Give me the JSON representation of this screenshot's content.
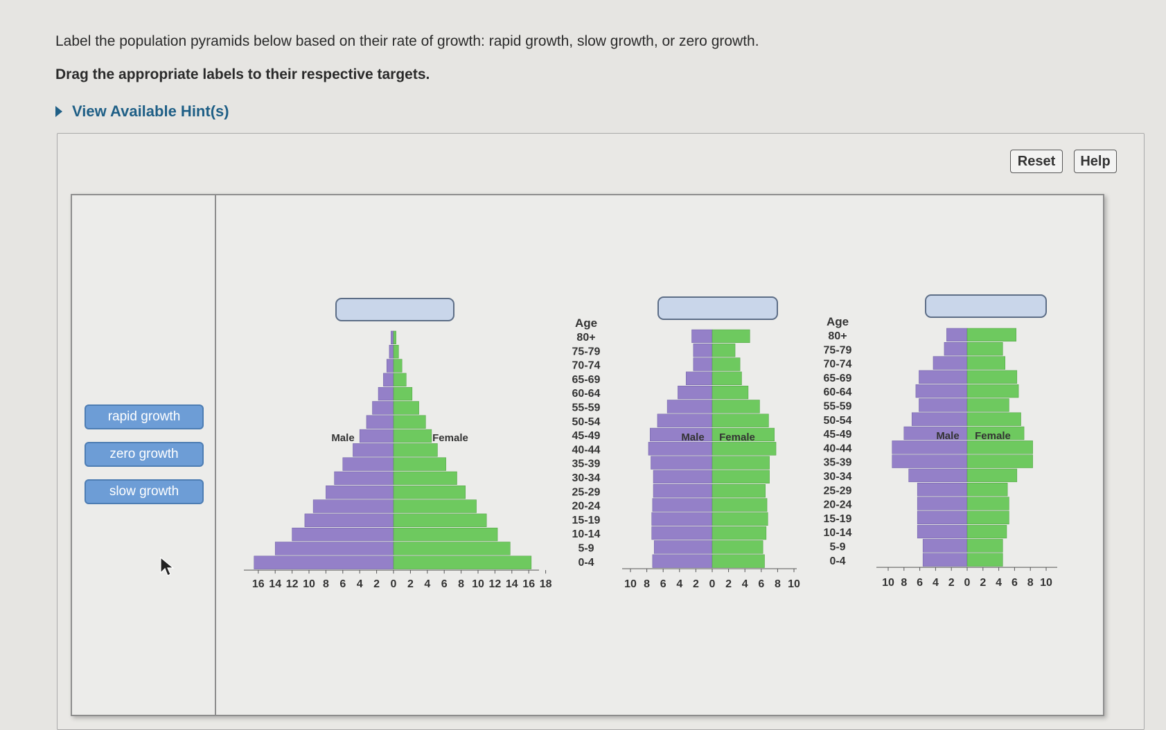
{
  "instruction": "Label the population pyramids below based on their rate of growth: rapid growth, slow growth, or zero growth.",
  "drag_instruction": "Drag the appropriate labels to their respective targets.",
  "hint_toggle": "View Available Hint(s)",
  "buttons": {
    "reset": "Reset",
    "help": "Help"
  },
  "labels": [
    "rapid growth",
    "zero growth",
    "slow growth"
  ],
  "colors": {
    "male": "#9480c8",
    "female": "#6ec95f",
    "label_bg": "#6d9dd6",
    "target_bg": "#c9d6ea"
  },
  "chart_data": [
    {
      "type": "bar",
      "orientation": "population-pyramid",
      "male_label": "Male",
      "female_label": "Female",
      "age_groups": [
        "80+",
        "75-79",
        "70-74",
        "65-69",
        "60-64",
        "55-59",
        "50-54",
        "45-49",
        "40-44",
        "35-39",
        "30-34",
        "25-29",
        "20-24",
        "15-19",
        "10-14",
        "5-9",
        "0-4"
      ],
      "male": [
        0.3,
        0.5,
        0.8,
        1.2,
        1.8,
        2.5,
        3.2,
        4,
        4.8,
        6,
        7,
        8,
        9.5,
        10.5,
        12,
        14,
        16.5
      ],
      "female": [
        0.3,
        0.6,
        1,
        1.5,
        2.2,
        3,
        3.8,
        4.5,
        5.2,
        6.2,
        7.5,
        8.5,
        9.8,
        11,
        12.3,
        13.8,
        16.3
      ],
      "x_ticks": [
        "16",
        "14",
        "12",
        "10",
        "8",
        "6",
        "4",
        "2",
        "0",
        "2",
        "4",
        "6",
        "8",
        "10",
        "12",
        "14",
        "16",
        "18"
      ]
    },
    {
      "type": "bar",
      "orientation": "population-pyramid",
      "male_label": "Male",
      "female_label": "Female",
      "age_groups": [
        "80+",
        "75-79",
        "70-74",
        "65-69",
        "60-64",
        "55-59",
        "50-54",
        "45-49",
        "40-44",
        "35-39",
        "30-34",
        "25-29",
        "20-24",
        "15-19",
        "10-14",
        "5-9",
        "0-4"
      ],
      "male": [
        2.5,
        2.3,
        2.3,
        3.2,
        4.2,
        5.5,
        6.7,
        7.6,
        7.8,
        7.5,
        7.2,
        7.2,
        7.3,
        7.4,
        7.4,
        7.1,
        7.3
      ],
      "female": [
        4.6,
        2.8,
        3.4,
        3.6,
        4.4,
        5.8,
        6.9,
        7.6,
        7.8,
        7,
        7,
        6.5,
        6.7,
        6.8,
        6.6,
        6.2,
        6.4
      ],
      "x_ticks": [
        "10",
        "8",
        "6",
        "4",
        "2",
        "0",
        "2",
        "4",
        "6",
        "8",
        "10"
      ]
    },
    {
      "type": "bar",
      "orientation": "population-pyramid",
      "male_label": "Male",
      "female_label": "Female",
      "age_groups": [
        "80+",
        "75-79",
        "70-74",
        "65-69",
        "60-64",
        "55-59",
        "50-54",
        "45-49",
        "40-44",
        "35-39",
        "30-34",
        "25-29",
        "20-24",
        "15-19",
        "10-14",
        "5-9",
        "0-4"
      ],
      "male": [
        2.6,
        2.9,
        4.3,
        6.1,
        6.5,
        6.1,
        7,
        8,
        9.5,
        9.5,
        7.4,
        6.3,
        6.3,
        6.3,
        6.3,
        5.6,
        5.6
      ],
      "female": [
        6.2,
        4.5,
        4.8,
        6.3,
        6.5,
        5.3,
        6.8,
        7.2,
        8.3,
        8.3,
        6.3,
        5.1,
        5.3,
        5.3,
        5,
        4.5,
        4.5
      ],
      "x_ticks": [
        "10",
        "8",
        "6",
        "4",
        "2",
        "0",
        "2",
        "4",
        "6",
        "8",
        "10"
      ]
    }
  ],
  "age_axis_title": "Age"
}
